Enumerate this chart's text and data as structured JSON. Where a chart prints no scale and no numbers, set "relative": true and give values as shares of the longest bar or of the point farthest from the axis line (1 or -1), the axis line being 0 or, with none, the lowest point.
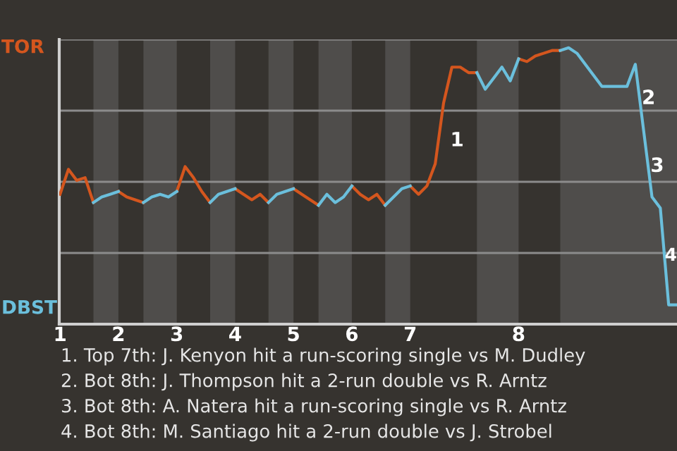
{
  "chart_data": {
    "type": "line",
    "relative": true,
    "categories": [
      "1",
      null,
      null,
      null,
      null,
      null,
      null,
      "2",
      null,
      null,
      null,
      null,
      null,
      null,
      "3",
      null,
      null,
      null,
      null,
      null,
      null,
      "4",
      null,
      null,
      null,
      null,
      null,
      null,
      "5",
      null,
      null,
      null,
      null,
      null,
      null,
      "6",
      null,
      null,
      null,
      null,
      null,
      null,
      "7",
      null,
      null,
      null,
      null,
      null,
      null,
      null,
      null,
      null,
      null,
      null,
      null,
      "8",
      null,
      null,
      null,
      null,
      null,
      null,
      null,
      null,
      null,
      null,
      null,
      null,
      null,
      null,
      null,
      null,
      null,
      null,
      null
    ],
    "grid": "y",
    "line_style": "solid",
    "marker": "none",
    "series": [
      {
        "color": "#d4561e",
        "values": [
          0.47,
          0.56,
          0.52,
          0.53,
          0.44,
          null,
          null,
          0.48,
          0.46,
          0.45,
          0.44,
          null,
          null,
          null,
          0.48,
          0.57,
          0.53,
          0.48,
          0.44,
          null,
          null,
          0.49,
          0.47,
          0.45,
          0.47,
          0.44,
          null,
          null,
          0.49,
          0.47,
          0.45,
          0.43,
          null,
          null,
          null,
          0.5,
          0.47,
          0.45,
          0.47,
          0.43,
          null,
          null,
          0.5,
          0.47,
          0.5,
          0.58,
          0.8,
          0.93,
          0.93,
          0.91,
          0.91,
          null,
          null,
          null,
          null,
          0.96,
          0.95,
          0.97,
          0.98,
          0.99,
          0.99,
          null,
          null,
          null,
          null,
          null,
          null,
          null,
          null,
          null,
          null,
          null,
          null,
          null,
          null
        ]
      },
      {
        "color": "#6bbfdc",
        "values": [
          null,
          null,
          null,
          null,
          0.44,
          0.46,
          0.47,
          0.48,
          null,
          null,
          0.44,
          0.46,
          0.47,
          0.46,
          0.48,
          null,
          null,
          null,
          0.44,
          0.47,
          0.48,
          0.49,
          null,
          null,
          null,
          0.44,
          0.47,
          0.48,
          0.49,
          null,
          null,
          0.43,
          0.47,
          0.44,
          0.46,
          0.5,
          null,
          null,
          null,
          0.43,
          0.46,
          0.49,
          0.5,
          null,
          null,
          null,
          null,
          null,
          null,
          null,
          0.91,
          0.85,
          0.89,
          0.93,
          0.88,
          0.96,
          null,
          null,
          null,
          null,
          0.99,
          1,
          0.98,
          0.94,
          0.9,
          0.86,
          0.86,
          0.86,
          0.86,
          0.94,
          0.7,
          0.46,
          0.42,
          0.07,
          0.07
        ]
      }
    ],
    "annotations": [
      "TOR",
      "DBST",
      "1",
      "2",
      "3",
      "4",
      "1. Top 7th: J. Kenyon hit a run-scoring single vs M. Dudley",
      "2. Bot 8th: J. Thompson hit a 2-run double vs R. Arntz",
      "3. Bot 8th: A. Natera hit a run-scoring single vs R. Arntz",
      "4. Bot 8th: M. Santiago hit a 2-run double vs J. Strobel"
    ]
  }
}
